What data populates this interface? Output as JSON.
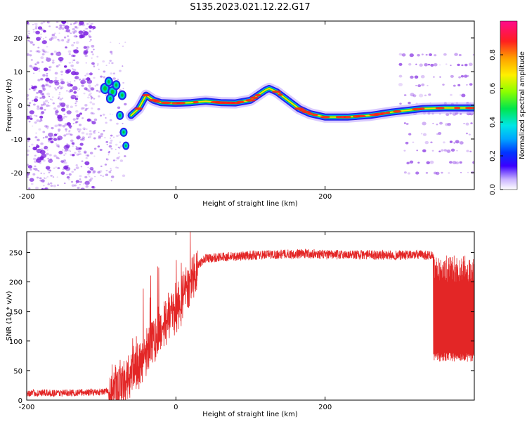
{
  "page_title": "S135.2023.021.12.22.G17",
  "colors": {
    "snr_line": "#e32626",
    "ridge_core": "#ff1a1a",
    "ridge_mid": "#00cc33",
    "ridge_edge": "#2222ee",
    "noise": "#7b1fe0"
  },
  "chart_data": [
    {
      "type": "heatmap",
      "title": "S135.2023.021.12.22.G17",
      "xlabel": "Height of straight line (km)",
      "ylabel": "Frequency (Hz)",
      "xlim": [
        -200,
        400
      ],
      "ylim": [
        -25,
        25
      ],
      "xticks": [
        -200,
        0,
        200
      ],
      "yticks": [
        -20,
        -10,
        0,
        10,
        20
      ],
      "colorbar": {
        "label": "Normalized spectral amplitude",
        "range": [
          0,
          1
        ],
        "ticks": [
          0.0,
          0.2,
          0.4,
          0.6,
          0.8
        ]
      },
      "ridge_frequency": {
        "x": [
          -60,
          -50,
          -45,
          -40,
          -30,
          -20,
          0,
          20,
          40,
          60,
          80,
          100,
          110,
          120,
          125,
          135,
          150,
          165,
          180,
          200,
          230,
          260,
          290,
          310,
          330,
          360,
          400
        ],
        "y": [
          -3,
          -1,
          1,
          3,
          1.5,
          0.8,
          0.6,
          0.8,
          1.2,
          0.8,
          0.7,
          1.5,
          3,
          4.5,
          5,
          4,
          1.5,
          -1,
          -2.5,
          -3.5,
          -3.5,
          -3,
          -2,
          -1.5,
          -1,
          -0.8,
          -0.8
        ]
      }
    },
    {
      "type": "line",
      "xlabel": "Height of straight line (km)",
      "ylabel": "SNR (10 * v/v)",
      "xlim": [
        -200,
        400
      ],
      "ylim": [
        0,
        285
      ],
      "xticks": [
        -200,
        0,
        200
      ],
      "yticks": [
        0,
        50,
        100,
        150,
        200,
        250
      ],
      "series": [
        {
          "x": [
            -200,
            -150,
            -100,
            -80,
            -70,
            -60,
            -50,
            -40,
            -30,
            -20,
            -10,
            0,
            10,
            20,
            30,
            40,
            60,
            80,
            100,
            120,
            150,
            180,
            200,
            250,
            300,
            330,
            345,
            350,
            400
          ],
          "y": [
            12,
            12,
            14,
            18,
            30,
            45,
            60,
            80,
            105,
            120,
            140,
            155,
            175,
            195,
            230,
            240,
            242,
            243,
            245,
            246,
            247,
            248,
            246,
            246,
            245,
            246,
            244,
            155,
            155
          ]
        }
      ]
    }
  ]
}
